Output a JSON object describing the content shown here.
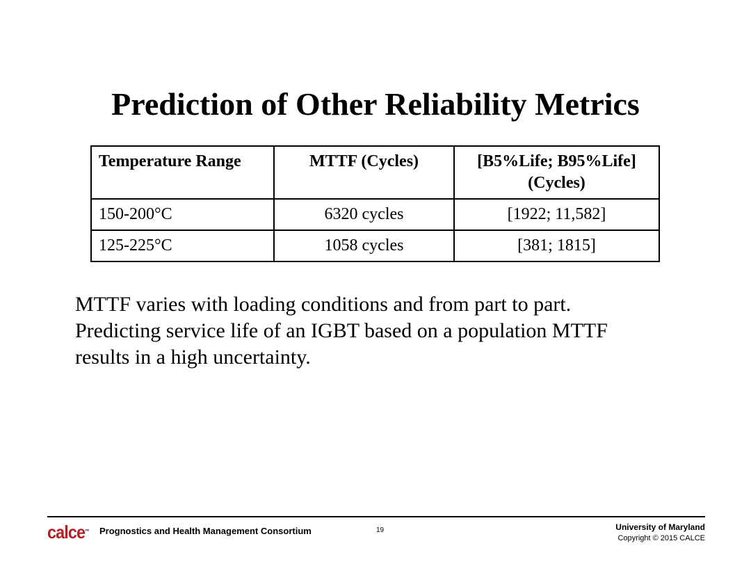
{
  "slide": {
    "title": "Prediction of Other Reliability Metrics"
  },
  "table": {
    "headers": [
      "Temperature Range",
      "MTTF (Cycles)",
      "[B5%Life; B95%Life]",
      "(Cycles)"
    ],
    "rows": [
      [
        "150-200°C",
        "6320 cycles",
        "[1922; 11,582]"
      ],
      [
        "125-225°C",
        "1058 cycles",
        "[381; 1815]"
      ]
    ]
  },
  "body": {
    "lines": [
      "MTTF varies with loading conditions and from part to part.",
      "Predicting service life of an IGBT based on a population MTTF",
      "results in a high uncertainty."
    ]
  },
  "footer": {
    "logo_text": "calce",
    "logo_tm": "™",
    "consortium": "Prognostics and Health Management Consortium",
    "page_number": "19",
    "university": "University of Maryland",
    "copyright": "Copyright © 2015 CALCE",
    "colors": {
      "logo": "#b41f24"
    }
  }
}
